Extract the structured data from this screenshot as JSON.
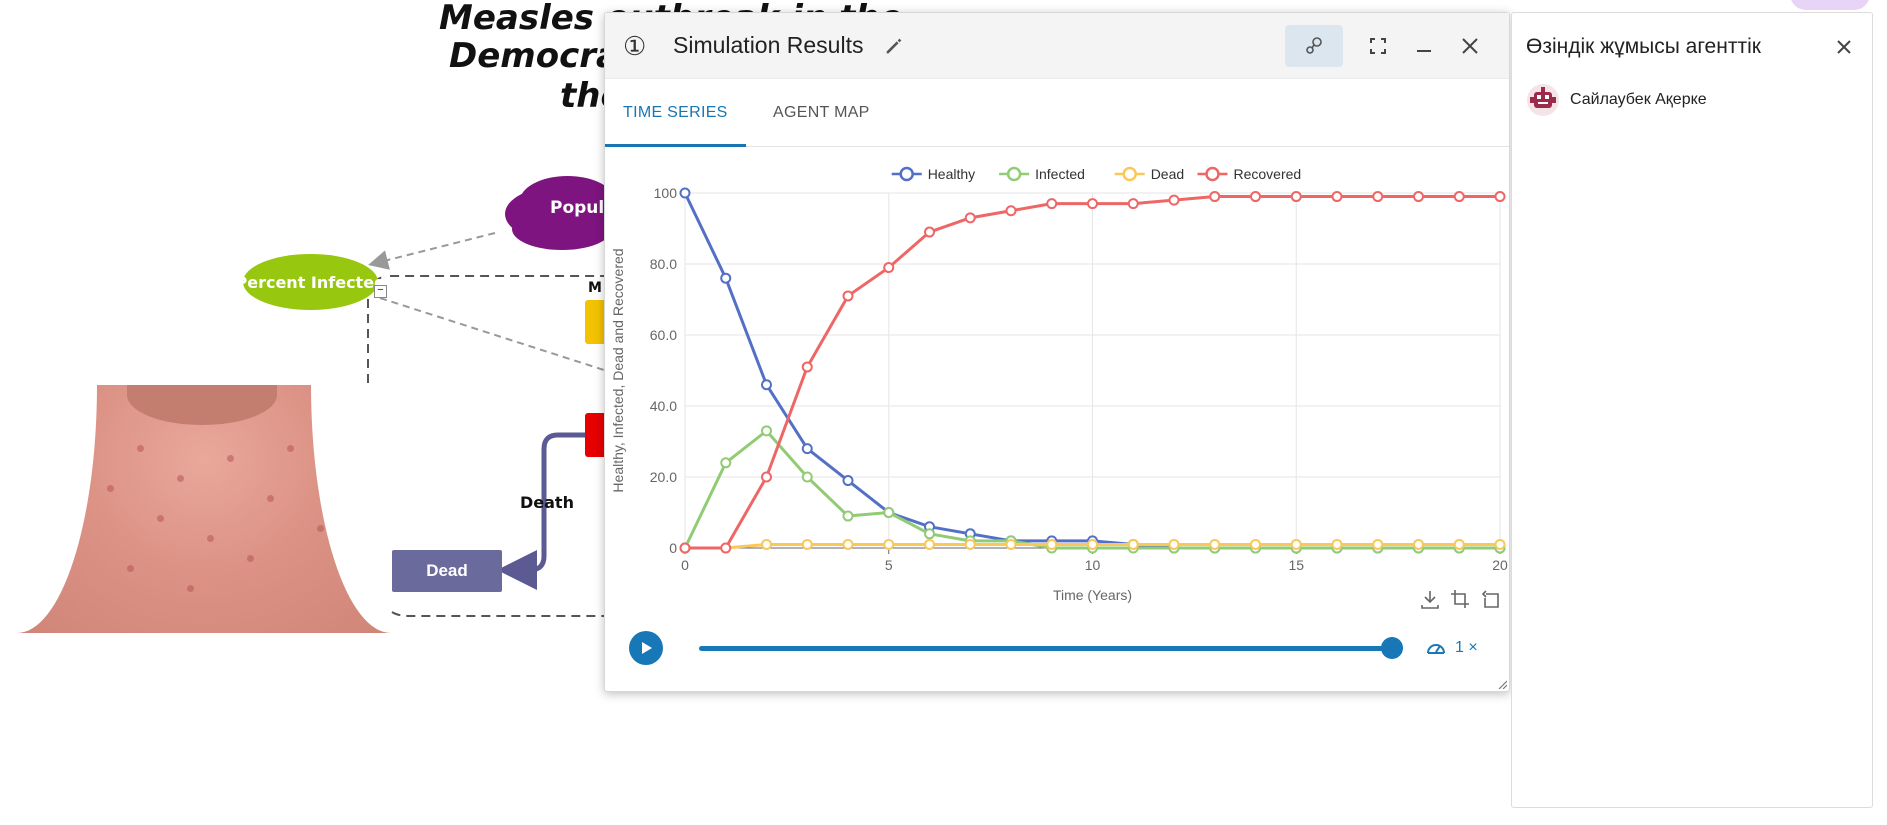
{
  "model": {
    "title_lines": [
      "Measles outbreak in the",
      "Democratic",
      "the"
    ],
    "population_label": "Populat",
    "percent_infected_label": "Percent Infected",
    "collapse_symbol": "−",
    "partial_label": "M",
    "death_flow_label": "Death",
    "dead_stock_label": "Dead",
    "colors": {
      "cloud": "#7e147f",
      "ellipse": "#97c70f",
      "stock_yellow": "#f3c200",
      "stock_red": "#e60000",
      "dead_stock": "#6b6a9d"
    }
  },
  "window": {
    "number": "①",
    "title": "Simulation Results",
    "tabs": [
      {
        "label": "TIME SERIES",
        "active": true
      },
      {
        "label": "AGENT MAP",
        "active": false
      }
    ],
    "header_buttons": [
      "network-icon",
      "fullscreen-icon",
      "minimize-icon",
      "close-icon"
    ],
    "playback": {
      "speed_label": "1 ×",
      "progress": 1.0
    }
  },
  "chart_data": {
    "type": "line",
    "xlabel": "Time (Years)",
    "ylabel": "Healthy, Infected, Dead and Recovered",
    "xlim": [
      0,
      20
    ],
    "ylim": [
      0,
      100
    ],
    "x_ticks": [
      "0",
      "5",
      "10",
      "15",
      "20"
    ],
    "y_ticks": [
      "0",
      "20.0",
      "40.0",
      "60.0",
      "80.0",
      "100"
    ],
    "grid": true,
    "legend_position": "top-center",
    "x": [
      0,
      1,
      2,
      3,
      4,
      5,
      6,
      7,
      8,
      9,
      10,
      11,
      12,
      13,
      14,
      15,
      16,
      17,
      18,
      19,
      20
    ],
    "series": [
      {
        "name": "Healthy",
        "color": "#5470c6",
        "values": [
          100,
          76,
          46,
          28,
          19,
          10,
          6,
          4,
          2,
          2,
          2,
          1,
          0,
          0,
          0,
          0,
          0,
          0,
          0,
          0,
          0
        ]
      },
      {
        "name": "Infected",
        "color": "#91cc75",
        "values": [
          0,
          24,
          33,
          20,
          9,
          10,
          4,
          2,
          2,
          0,
          0,
          0,
          0,
          0,
          0,
          0,
          0,
          0,
          0,
          0,
          0
        ]
      },
      {
        "name": "Dead",
        "color": "#fac858",
        "values": [
          0,
          0,
          1,
          1,
          1,
          1,
          1,
          1,
          1,
          1,
          1,
          1,
          1,
          1,
          1,
          1,
          1,
          1,
          1,
          1,
          1
        ]
      },
      {
        "name": "Recovered",
        "color": "#ee6666",
        "values": [
          0,
          0,
          20,
          51,
          71,
          79,
          89,
          93,
          95,
          97,
          97,
          97,
          98,
          99,
          99,
          99,
          99,
          99,
          99,
          99,
          99
        ]
      }
    ],
    "toolbox": [
      "download-icon",
      "crop-icon",
      "reset-icon"
    ]
  },
  "agent_panel": {
    "title": "Өзіндік жұмысы агенттік",
    "agents": [
      {
        "name": "Сайлаубек Ақерке",
        "avatar": "robot-avatar-icon"
      }
    ]
  }
}
